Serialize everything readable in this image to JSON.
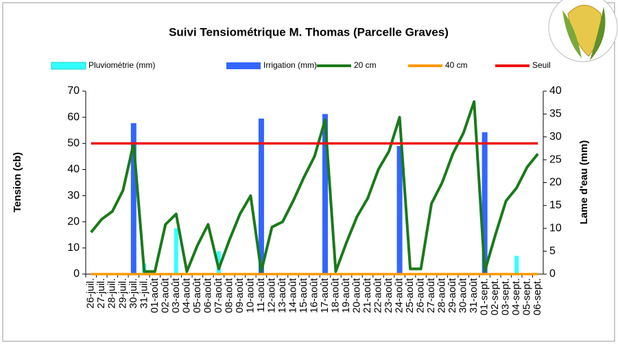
{
  "chart_data": {
    "type": "combo",
    "title": "Suivi Tensiométrique M. Thomas (Parcelle Graves)",
    "y_label": "Tension (cb)",
    "y2_label": "Lame d'eau (mm)",
    "categories": [
      "26-juil.",
      "27-juil.",
      "28-juil.",
      "29-juil.",
      "30-juil.",
      "31-juil.",
      "01-août",
      "02-août",
      "03-août",
      "04-août",
      "05-août",
      "06-août",
      "07-août",
      "08-août",
      "09-août",
      "10-août",
      "11-août",
      "12-août",
      "13-août",
      "14-août",
      "15-août",
      "16-août",
      "17-août",
      "18-août",
      "19-août",
      "20-août",
      "21-août",
      "22-août",
      "23-août",
      "24-août",
      "25-août",
      "26-août",
      "27-août",
      "28-août",
      "29-août",
      "30-août",
      "31-août",
      "01-sept.",
      "02-sept.",
      "03-sept.",
      "04-sept.",
      "05-sept.",
      "06-sept."
    ],
    "series": [
      {
        "name": "Pluviométrie (mm)",
        "type": "bar",
        "axis": "y2",
        "color": "#33ffff",
        "values": [
          0,
          0,
          0,
          0,
          0,
          2.3,
          0,
          0,
          10,
          0,
          0,
          0,
          5,
          0,
          0,
          0,
          0,
          0,
          0,
          0,
          0,
          0,
          0,
          0,
          0,
          0,
          0,
          0,
          0,
          0,
          0,
          0,
          0,
          0,
          0,
          0,
          0,
          0,
          0,
          0,
          4,
          0,
          0
        ]
      },
      {
        "name": "Irrigation (mm)",
        "type": "bar",
        "axis": "y2",
        "color": "#3366ff",
        "values": [
          0,
          0,
          0,
          0,
          33,
          0,
          0,
          0,
          0,
          0,
          0,
          0,
          0,
          0,
          0,
          0,
          34,
          0,
          0,
          0,
          0,
          0,
          35,
          0,
          0,
          0,
          0,
          0,
          0,
          28,
          0,
          0,
          0,
          0,
          0,
          0,
          0,
          31,
          0,
          0,
          0,
          0,
          0
        ]
      },
      {
        "name": "20 cm",
        "type": "line",
        "axis": "y",
        "color": "#1a7a1a",
        "values": [
          16,
          21,
          24,
          32,
          50,
          1,
          1,
          19,
          23,
          1,
          11,
          19,
          2,
          13,
          23,
          30,
          1,
          18,
          20,
          28,
          37,
          45,
          59,
          1,
          12,
          22,
          29,
          40,
          47,
          60,
          2,
          2,
          27,
          35,
          46,
          54,
          66,
          1,
          15,
          28,
          33,
          41,
          46
        ]
      },
      {
        "name": "40 cm",
        "type": "line",
        "axis": "y",
        "color": "#ff9900",
        "values": [
          0,
          0,
          0,
          0,
          0,
          0,
          0,
          0,
          0,
          0,
          0,
          0,
          0,
          0,
          0,
          0,
          0,
          0,
          0,
          0,
          0,
          0,
          0,
          0,
          0,
          0,
          0,
          0,
          0,
          0,
          0,
          0,
          0,
          0,
          0,
          0,
          0,
          0,
          0,
          0,
          0,
          0,
          0
        ]
      },
      {
        "name": "Seuil",
        "type": "line",
        "axis": "y",
        "color": "#ee1111",
        "values": [
          50,
          50,
          50,
          50,
          50,
          50,
          50,
          50,
          50,
          50,
          50,
          50,
          50,
          50,
          50,
          50,
          50,
          50,
          50,
          50,
          50,
          50,
          50,
          50,
          50,
          50,
          50,
          50,
          50,
          50,
          50,
          50,
          50,
          50,
          50,
          50,
          50,
          50,
          50,
          50,
          50,
          50,
          50
        ]
      }
    ],
    "ylim": [
      0,
      70
    ],
    "yticks": [
      0,
      10,
      20,
      30,
      40,
      50,
      60,
      70
    ],
    "y2lim": [
      0,
      40
    ],
    "y2ticks": [
      0,
      5,
      10,
      15,
      20,
      25,
      30,
      35,
      40
    ],
    "legend": "top"
  }
}
